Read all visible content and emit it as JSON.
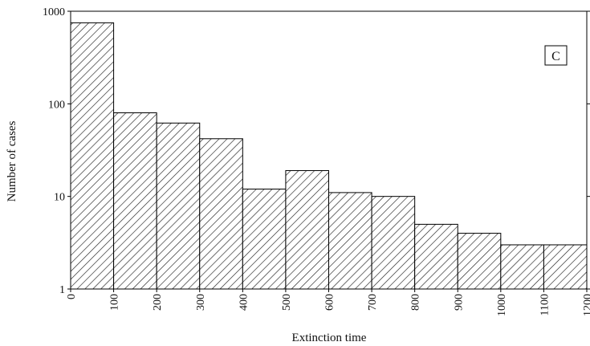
{
  "chart_data": {
    "type": "bar",
    "xlabel": "Extinction time",
    "ylabel": "Number of cases",
    "yscale": "log",
    "ylim": [
      1,
      1000
    ],
    "xlim": [
      0,
      1200
    ],
    "panel_label": "C",
    "bin_edges": [
      0,
      100,
      200,
      300,
      400,
      500,
      600,
      700,
      800,
      900,
      1000,
      1100,
      1200
    ],
    "x_tick_labels": [
      "0",
      "100",
      "200",
      "300",
      "400",
      "500",
      "600",
      "700",
      "800",
      "900",
      "1000",
      "1100",
      "1200"
    ],
    "y_tick_labels": [
      "1",
      "10",
      "100",
      "1000"
    ],
    "values": [
      750,
      80,
      62,
      42,
      12,
      19,
      11,
      10,
      5,
      4,
      3,
      3
    ],
    "bar_style": "diagonal hatch",
    "colors": {
      "bar_fill": "#ffffff",
      "hatch": "#222222",
      "axis": "#000000"
    }
  }
}
